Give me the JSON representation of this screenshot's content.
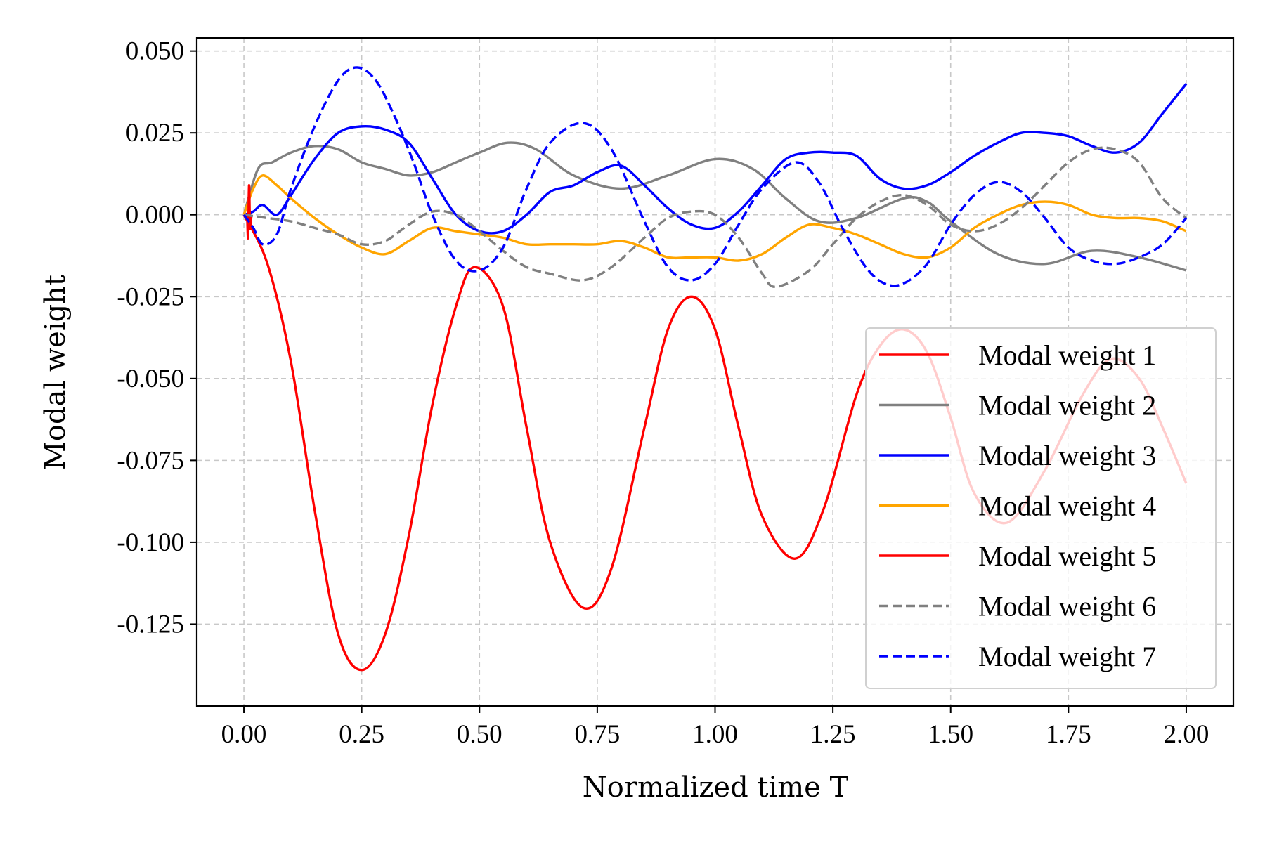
{
  "chart_data": {
    "type": "line",
    "title": "",
    "xlabel": "Normalized time T",
    "ylabel": "Modal weight",
    "xlim": [
      -0.1,
      2.1
    ],
    "ylim": [
      -0.15,
      0.054
    ],
    "x_ticks": [
      0.0,
      0.25,
      0.5,
      0.75,
      1.0,
      1.25,
      1.5,
      1.75,
      2.0
    ],
    "x_tick_labels": [
      "0.00",
      "0.25",
      "0.50",
      "0.75",
      "1.00",
      "1.25",
      "1.50",
      "1.75",
      "2.00"
    ],
    "y_ticks": [
      0.05,
      0.025,
      0.0,
      -0.025,
      -0.05,
      -0.075,
      -0.1,
      -0.125
    ],
    "y_tick_labels": [
      "0.050",
      "0.025",
      "0.000",
      "-0.025",
      "-0.050",
      "-0.075",
      "-0.100",
      "-0.125"
    ],
    "grid": true,
    "legend_position": "lower-right",
    "series": [
      {
        "name": "Modal weight 1",
        "color": "#ff0000",
        "dash": "solid",
        "x": [
          0.0,
          0.05,
          0.1,
          0.15,
          0.2,
          0.25,
          0.3,
          0.35,
          0.4,
          0.45,
          0.49,
          0.55,
          0.6,
          0.65,
          0.72,
          0.78,
          0.85,
          0.9,
          0.95,
          1.0,
          1.05,
          1.1,
          1.17,
          1.23,
          1.3,
          1.35,
          1.4,
          1.45,
          1.5,
          1.55,
          1.62,
          1.7,
          1.78,
          1.84,
          1.9,
          1.95,
          2.0
        ],
        "y": [
          0.0,
          -0.015,
          -0.045,
          -0.09,
          -0.128,
          -0.139,
          -0.128,
          -0.098,
          -0.058,
          -0.028,
          -0.016,
          -0.028,
          -0.065,
          -0.1,
          -0.12,
          -0.108,
          -0.065,
          -0.035,
          -0.025,
          -0.035,
          -0.065,
          -0.092,
          -0.105,
          -0.09,
          -0.055,
          -0.04,
          -0.035,
          -0.042,
          -0.062,
          -0.085,
          -0.094,
          -0.078,
          -0.055,
          -0.044,
          -0.05,
          -0.065,
          -0.082
        ]
      },
      {
        "name": "Modal weight 2",
        "color": "#808080",
        "dash": "solid",
        "x": [
          0.0,
          0.03,
          0.06,
          0.1,
          0.15,
          0.2,
          0.25,
          0.3,
          0.35,
          0.4,
          0.45,
          0.5,
          0.56,
          0.62,
          0.7,
          0.8,
          0.9,
          1.0,
          1.08,
          1.15,
          1.22,
          1.3,
          1.4,
          1.45,
          1.5,
          1.6,
          1.7,
          1.8,
          1.9,
          2.0
        ],
        "y": [
          0.0,
          0.014,
          0.016,
          0.019,
          0.021,
          0.02,
          0.016,
          0.014,
          0.012,
          0.013,
          0.016,
          0.019,
          0.022,
          0.02,
          0.012,
          0.008,
          0.012,
          0.017,
          0.014,
          0.005,
          -0.002,
          -0.001,
          0.005,
          0.004,
          -0.002,
          -0.012,
          -0.015,
          -0.011,
          -0.013,
          -0.017
        ]
      },
      {
        "name": "Modal weight 3",
        "color": "#0000ff",
        "dash": "solid",
        "x": [
          0.0,
          0.02,
          0.04,
          0.07,
          0.1,
          0.15,
          0.2,
          0.25,
          0.3,
          0.35,
          0.4,
          0.45,
          0.5,
          0.55,
          0.6,
          0.65,
          0.7,
          0.75,
          0.8,
          0.85,
          0.9,
          0.95,
          1.0,
          1.05,
          1.1,
          1.15,
          1.2,
          1.25,
          1.3,
          1.35,
          1.4,
          1.45,
          1.5,
          1.55,
          1.6,
          1.65,
          1.7,
          1.75,
          1.8,
          1.85,
          1.9,
          1.95,
          2.0
        ],
        "y": [
          0.0,
          0.001,
          0.003,
          0.0,
          0.006,
          0.017,
          0.025,
          0.027,
          0.026,
          0.022,
          0.011,
          0.0,
          -0.005,
          -0.005,
          0.0,
          0.007,
          0.009,
          0.013,
          0.015,
          0.009,
          0.002,
          -0.003,
          -0.004,
          0.001,
          0.009,
          0.017,
          0.019,
          0.019,
          0.018,
          0.011,
          0.008,
          0.009,
          0.013,
          0.018,
          0.022,
          0.025,
          0.025,
          0.024,
          0.021,
          0.019,
          0.022,
          0.031,
          0.04
        ]
      },
      {
        "name": "Modal weight 4",
        "color": "#ffa500",
        "dash": "solid",
        "x": [
          0.0,
          0.02,
          0.04,
          0.07,
          0.1,
          0.15,
          0.2,
          0.25,
          0.3,
          0.35,
          0.4,
          0.45,
          0.5,
          0.55,
          0.6,
          0.65,
          0.7,
          0.75,
          0.8,
          0.85,
          0.9,
          0.95,
          1.0,
          1.05,
          1.1,
          1.15,
          1.2,
          1.25,
          1.3,
          1.35,
          1.4,
          1.45,
          1.5,
          1.55,
          1.6,
          1.65,
          1.7,
          1.75,
          1.8,
          1.85,
          1.9,
          1.95,
          2.0
        ],
        "y": [
          0.0,
          0.008,
          0.012,
          0.009,
          0.005,
          -0.001,
          -0.006,
          -0.01,
          -0.012,
          -0.008,
          -0.004,
          -0.005,
          -0.006,
          -0.007,
          -0.009,
          -0.009,
          -0.009,
          -0.009,
          -0.008,
          -0.01,
          -0.013,
          -0.013,
          -0.013,
          -0.014,
          -0.012,
          -0.007,
          -0.003,
          -0.004,
          -0.006,
          -0.009,
          -0.012,
          -0.013,
          -0.01,
          -0.004,
          0.0,
          0.003,
          0.004,
          0.003,
          0.0,
          -0.001,
          -0.001,
          -0.002,
          -0.005
        ]
      },
      {
        "name": "Modal weight 5",
        "color": "#ff0000",
        "dash": "solid",
        "x": [
          0.007,
          0.009,
          0.011,
          0.013,
          0.016
        ],
        "y": [
          0.0,
          -0.007,
          0.009,
          -0.004,
          0.0
        ]
      },
      {
        "name": "Modal weight 6",
        "color": "#808080",
        "dash": "dashed",
        "x": [
          0.0,
          0.05,
          0.1,
          0.15,
          0.2,
          0.25,
          0.3,
          0.35,
          0.4,
          0.45,
          0.5,
          0.55,
          0.6,
          0.65,
          0.72,
          0.78,
          0.85,
          0.9,
          0.95,
          1.0,
          1.05,
          1.1,
          1.13,
          1.2,
          1.25,
          1.3,
          1.35,
          1.4,
          1.45,
          1.5,
          1.55,
          1.6,
          1.65,
          1.7,
          1.75,
          1.8,
          1.85,
          1.9,
          1.95,
          2.0
        ],
        "y": [
          0.0,
          -0.001,
          -0.002,
          -0.004,
          -0.006,
          -0.009,
          -0.008,
          -0.003,
          0.001,
          0.0,
          -0.005,
          -0.011,
          -0.016,
          -0.018,
          -0.02,
          -0.016,
          -0.007,
          -0.001,
          0.001,
          0.0,
          -0.007,
          -0.018,
          -0.022,
          -0.017,
          -0.009,
          -0.001,
          0.004,
          0.006,
          0.003,
          -0.003,
          -0.005,
          -0.003,
          0.002,
          0.009,
          0.016,
          0.02,
          0.02,
          0.016,
          0.005,
          -0.001
        ]
      },
      {
        "name": "Modal weight 7",
        "color": "#0000ff",
        "dash": "dashed",
        "x": [
          0.0,
          0.02,
          0.04,
          0.07,
          0.1,
          0.15,
          0.2,
          0.24,
          0.28,
          0.32,
          0.36,
          0.4,
          0.45,
          0.5,
          0.55,
          0.6,
          0.65,
          0.72,
          0.78,
          0.85,
          0.9,
          0.95,
          1.0,
          1.05,
          1.1,
          1.17,
          1.22,
          1.27,
          1.32,
          1.36,
          1.4,
          1.45,
          1.5,
          1.55,
          1.6,
          1.65,
          1.7,
          1.75,
          1.8,
          1.85,
          1.9,
          1.95,
          2.0
        ],
        "y": [
          0.0,
          -0.004,
          -0.009,
          -0.006,
          0.008,
          0.027,
          0.041,
          0.045,
          0.041,
          0.03,
          0.016,
          0.0,
          -0.014,
          -0.017,
          -0.01,
          0.008,
          0.022,
          0.028,
          0.02,
          -0.002,
          -0.016,
          -0.02,
          -0.015,
          -0.003,
          0.008,
          0.016,
          0.01,
          -0.004,
          -0.016,
          -0.021,
          -0.021,
          -0.015,
          -0.003,
          0.006,
          0.01,
          0.007,
          -0.001,
          -0.01,
          -0.014,
          -0.015,
          -0.013,
          -0.009,
          -0.001
        ]
      }
    ]
  }
}
